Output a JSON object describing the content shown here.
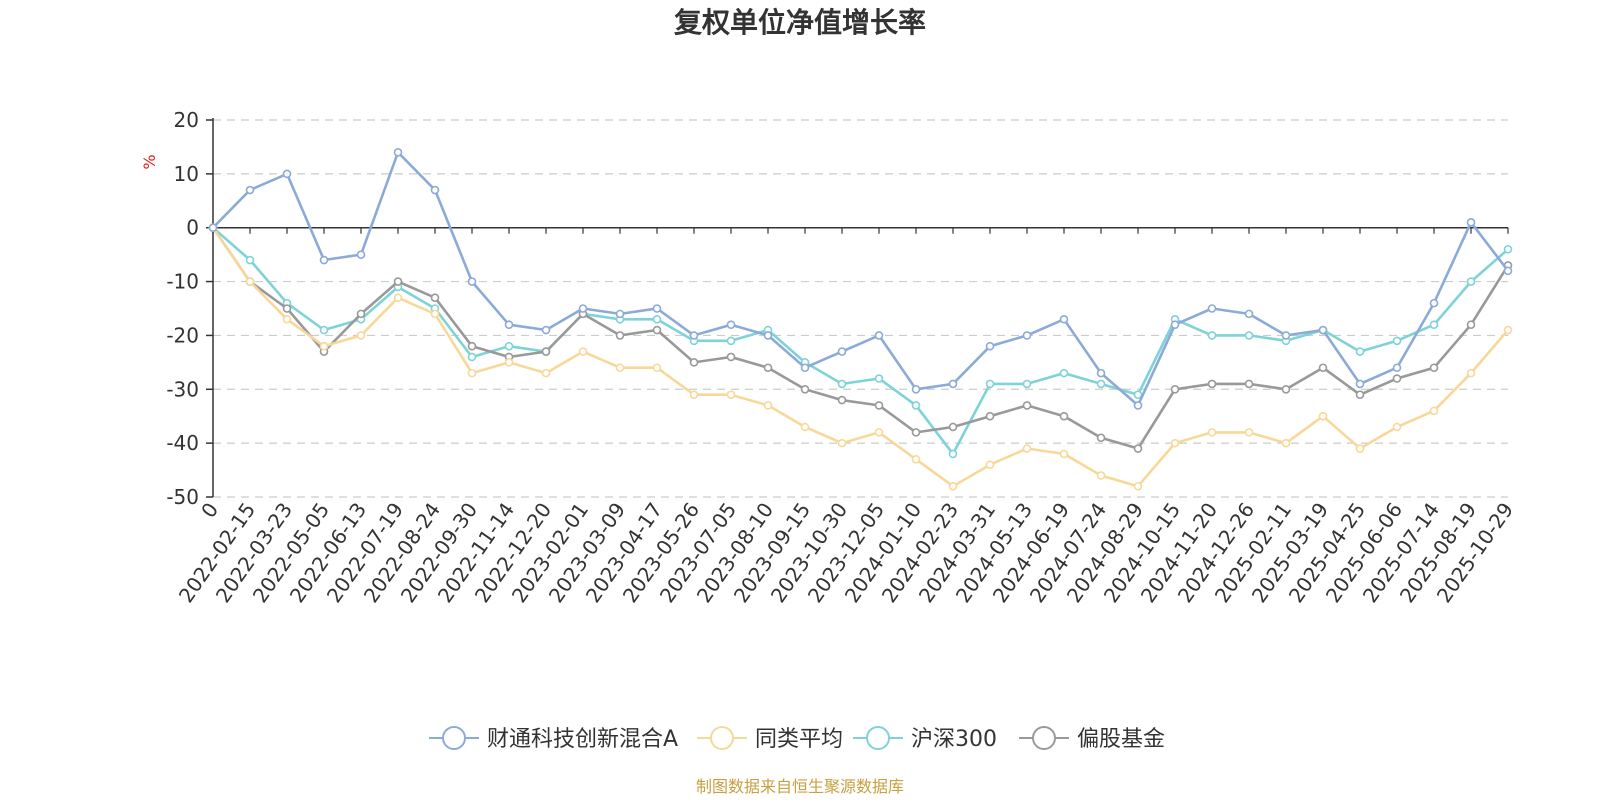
{
  "title": "复权单位净值增长率",
  "source": "制图数据来自恒生聚源数据库",
  "colors": {
    "source": "#c8a040",
    "unit": "#e02020",
    "axis": "#333333",
    "grid": "#cccccc"
  },
  "chart_data": {
    "type": "line",
    "title": "复权单位净值增长率",
    "ylabel": "%",
    "ylim": [
      -50,
      20
    ],
    "yticks": [
      20,
      10,
      0,
      -10,
      -20,
      -30,
      -40,
      -50
    ],
    "grid": "dashed horizontal",
    "legend_position": "bottom",
    "categories": [
      "0",
      "2022-02-15",
      "2022-03-23",
      "2022-05-05",
      "2022-06-13",
      "2022-07-19",
      "2022-08-24",
      "2022-09-30",
      "2022-11-14",
      "2022-12-20",
      "2023-02-01",
      "2023-03-09",
      "2023-04-17",
      "2023-05-26",
      "2023-07-05",
      "2023-08-10",
      "2023-09-15",
      "2023-10-30",
      "2023-12-05",
      "2024-01-10",
      "2024-02-23",
      "2024-03-31",
      "2024-05-13",
      "2024-06-19",
      "2024-07-24",
      "2024-08-29",
      "2024-10-15",
      "2024-11-20",
      "2024-12-26",
      "2025-02-11",
      "2025-03-19",
      "2025-04-25",
      "2025-06-06",
      "2025-07-14",
      "2025-08-19",
      "2025-10-29"
    ],
    "series": [
      {
        "name": "财通科技创新混合A",
        "color": "#8caad8",
        "values": [
          0,
          7,
          10,
          -6,
          -5,
          14,
          7,
          -10,
          -18,
          -19,
          -15,
          -16,
          -15,
          -20,
          -18,
          -20,
          -26,
          -23,
          -20,
          -30,
          -29,
          -22,
          -20,
          -17,
          -27,
          -33,
          -18,
          -15,
          -16,
          -20,
          -19,
          -29,
          -26,
          -14,
          1,
          -8
        ]
      },
      {
        "name": "同类平均",
        "color": "#f8d898",
        "values": [
          0,
          -10,
          -17,
          -22,
          -20,
          -13,
          -16,
          -27,
          -25,
          -27,
          -23,
          -26,
          -26,
          -31,
          -31,
          -33,
          -37,
          -40,
          -38,
          -43,
          -48,
          -44,
          -41,
          -42,
          -46,
          -48,
          -40,
          -38,
          -38,
          -40,
          -35,
          -41,
          -37,
          -34,
          -27,
          -19
        ]
      },
      {
        "name": "沪深300",
        "color": "#7ed3d8",
        "values": [
          0,
          -6,
          -14,
          -19,
          -17,
          -11,
          -15,
          -24,
          -22,
          -23,
          -16,
          -17,
          -17,
          -21,
          -21,
          -19,
          -25,
          -29,
          -28,
          -33,
          -42,
          -29,
          -29,
          -27,
          -29,
          -31,
          -17,
          -20,
          -20,
          -21,
          -19,
          -23,
          -21,
          -18,
          -10,
          -4
        ]
      },
      {
        "name": "偏股基金",
        "color": "#999999",
        "values": [
          0,
          -10,
          -15,
          -23,
          -16,
          -10,
          -13,
          -22,
          -24,
          -23,
          -16,
          -20,
          -19,
          -25,
          -24,
          -26,
          -30,
          -32,
          -33,
          -38,
          -37,
          -35,
          -33,
          -35,
          -39,
          -41,
          -30,
          -29,
          -29,
          -30,
          -26,
          -31,
          -28,
          -26,
          -18,
          -7
        ]
      }
    ]
  }
}
